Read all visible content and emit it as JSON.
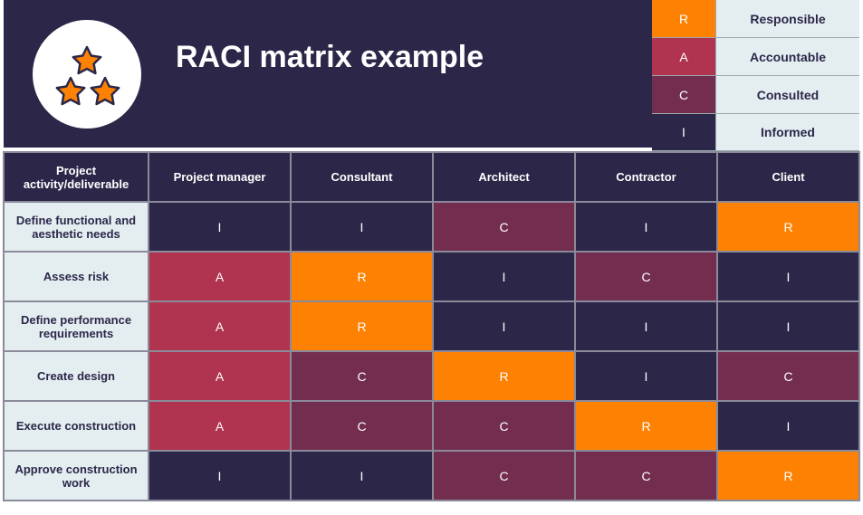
{
  "title": "RACI matrix example",
  "colors": {
    "R": "#fd8204",
    "A": "#b0344f",
    "C": "#732d4f",
    "I": "#2c2749"
  },
  "legend": [
    {
      "code": "R",
      "label": "Responsible"
    },
    {
      "code": "A",
      "label": "Accountable"
    },
    {
      "code": "C",
      "label": "Consulted"
    },
    {
      "code": "I",
      "label": "Informed"
    }
  ],
  "headers": [
    "Project activity/deliverable",
    "Project manager",
    "Consultant",
    "Architect",
    "Contractor",
    "Client"
  ],
  "rows": [
    {
      "activity": "Define functional and aesthetic needs",
      "values": [
        "I",
        "I",
        "C",
        "I",
        "R"
      ]
    },
    {
      "activity": "Assess risk",
      "values": [
        "A",
        "R",
        "I",
        "C",
        "I"
      ]
    },
    {
      "activity": "Define performance requirements",
      "values": [
        "A",
        "R",
        "I",
        "I",
        "I"
      ]
    },
    {
      "activity": "Create design",
      "values": [
        "A",
        "C",
        "R",
        "I",
        "C"
      ]
    },
    {
      "activity": "Execute construction",
      "values": [
        "A",
        "C",
        "C",
        "R",
        "I"
      ]
    },
    {
      "activity": "Approve construction work",
      "values": [
        "I",
        "I",
        "C",
        "C",
        "R"
      ]
    }
  ]
}
